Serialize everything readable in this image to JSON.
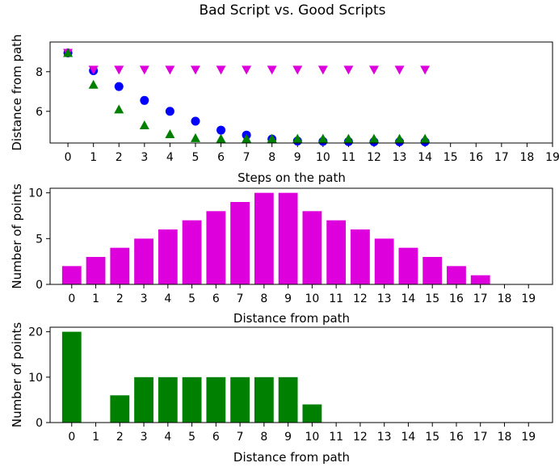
{
  "figure": {
    "title": "Bad Script vs. Good Scripts"
  },
  "chart_data": [
    {
      "type": "scatter",
      "xlabel": "Steps on the path",
      "ylabel": "Distance from path",
      "xlim": [
        -0.7,
        19.0
      ],
      "ylim": [
        4.4,
        9.5
      ],
      "xticks": [
        0,
        1,
        2,
        3,
        4,
        5,
        6,
        7,
        8,
        9,
        10,
        11,
        12,
        13,
        14,
        15,
        16,
        17,
        18,
        19
      ],
      "yticks": [
        6,
        8
      ],
      "grid": false,
      "series": [
        {
          "marker": "circle",
          "color": "#0000ff",
          "x": [
            0,
            1,
            2,
            3,
            4,
            5,
            6,
            7,
            8,
            9,
            10,
            11,
            12,
            13,
            14
          ],
          "y": [
            8.95,
            8.05,
            7.25,
            6.55,
            6.0,
            5.5,
            5.05,
            4.8,
            4.6,
            4.5,
            4.48,
            4.47,
            4.46,
            4.46,
            4.46
          ]
        },
        {
          "marker": "triangle-down",
          "color": "#dd00dd",
          "x": [
            0,
            1,
            2,
            3,
            4,
            5,
            6,
            7,
            8,
            9,
            10,
            11,
            12,
            13,
            14
          ],
          "y": [
            8.95,
            8.1,
            8.1,
            8.1,
            8.1,
            8.1,
            8.1,
            8.1,
            8.1,
            8.1,
            8.1,
            8.1,
            8.1,
            8.1,
            8.1
          ]
        },
        {
          "marker": "triangle-up",
          "color": "#008000",
          "x": [
            0,
            1,
            2,
            3,
            4,
            5,
            6,
            7,
            8,
            9,
            10,
            11,
            12,
            13,
            14
          ],
          "y": [
            8.95,
            7.35,
            6.1,
            5.3,
            4.85,
            4.65,
            4.62,
            4.62,
            4.62,
            4.62,
            4.62,
            4.62,
            4.62,
            4.62,
            4.62
          ]
        }
      ]
    },
    {
      "type": "bar",
      "xlabel": "Distance from path",
      "ylabel": "Number of points",
      "color": "#dd00dd",
      "categories": [
        0,
        1,
        2,
        3,
        4,
        5,
        6,
        7,
        8,
        9,
        10,
        11,
        12,
        13,
        14,
        15,
        16,
        17,
        18,
        19
      ],
      "values": [
        2,
        3,
        4,
        5,
        6,
        7,
        8,
        9,
        10,
        10,
        8,
        7,
        6,
        5,
        4,
        3,
        2,
        1,
        0,
        0
      ],
      "xlim": [
        -0.9,
        20.0
      ],
      "ylim": [
        0,
        10.5
      ],
      "yticks": [
        0,
        5,
        10
      ],
      "grid": false
    },
    {
      "type": "bar",
      "xlabel": "Distance from path",
      "ylabel": "Number of points",
      "color": "#008000",
      "categories": [
        0,
        1,
        2,
        3,
        4,
        5,
        6,
        7,
        8,
        9,
        10,
        11,
        12,
        13,
        14,
        15,
        16,
        17,
        18,
        19
      ],
      "values": [
        20,
        0,
        6,
        10,
        10,
        10,
        10,
        10,
        10,
        10,
        4,
        0,
        0,
        0,
        0,
        0,
        0,
        0,
        0,
        0
      ],
      "xlim": [
        -0.9,
        20.0
      ],
      "ylim": [
        0,
        21.0
      ],
      "yticks": [
        0,
        10,
        20
      ],
      "grid": false
    }
  ]
}
